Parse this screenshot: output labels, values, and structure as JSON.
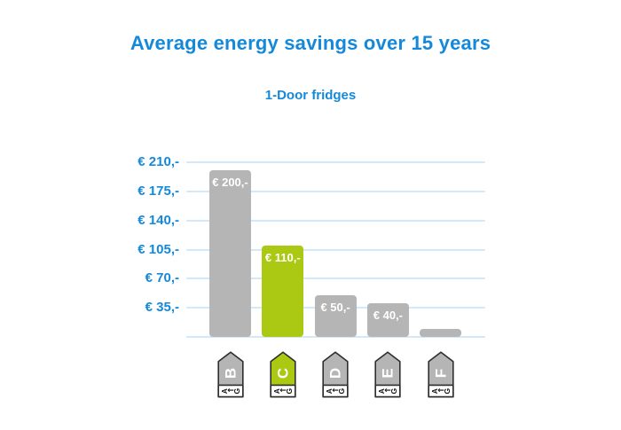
{
  "header": {
    "title": "Average energy savings over 15 years",
    "subtitle": "1-Door fridges"
  },
  "chart_data": {
    "type": "bar",
    "title": "Average energy savings over 15 years",
    "subtitle": "1-Door fridges",
    "categories": [
      "B",
      "C",
      "D",
      "E",
      "F"
    ],
    "values": [
      200,
      110,
      50,
      40,
      10
    ],
    "bar_labels": [
      "€ 200,-",
      "€ 110,-",
      "€ 50,-",
      "€ 40,-",
      ""
    ],
    "bar_colors": [
      "#b5b5b5",
      "#abc912",
      "#b5b5b5",
      "#b5b5b5",
      "#b5b5b5"
    ],
    "currency_format": "€ N,-",
    "y_ticks": [
      35,
      70,
      105,
      140,
      175,
      210
    ],
    "y_tick_labels": [
      "€ 35,-",
      "€ 70,-",
      "€ 105,-",
      "€ 140,-",
      "€ 175,-",
      "€ 210,-"
    ],
    "ylim": [
      0,
      210
    ],
    "xlabel": "",
    "ylabel": "",
    "grid": true,
    "legend": false,
    "x_axis_icons": {
      "type": "eu-energy-label-tag",
      "letters": [
        "B",
        "C",
        "D",
        "E",
        "F"
      ],
      "letter_colors": [
        "#b5b5b5",
        "#abc912",
        "#b5b5b5",
        "#b5b5b5",
        "#b5b5b5"
      ],
      "scale_text": "A←G"
    }
  },
  "colors": {
    "accent_blue": "#1589d9",
    "bar_gray": "#b5b5b5",
    "bar_green": "#abc912",
    "gridline": "#d3e9f9",
    "bar_label_text": "#ffffff",
    "icon_border": "#2e2e2e",
    "icon_scale_text": "#111111",
    "background": "#ffffff"
  }
}
